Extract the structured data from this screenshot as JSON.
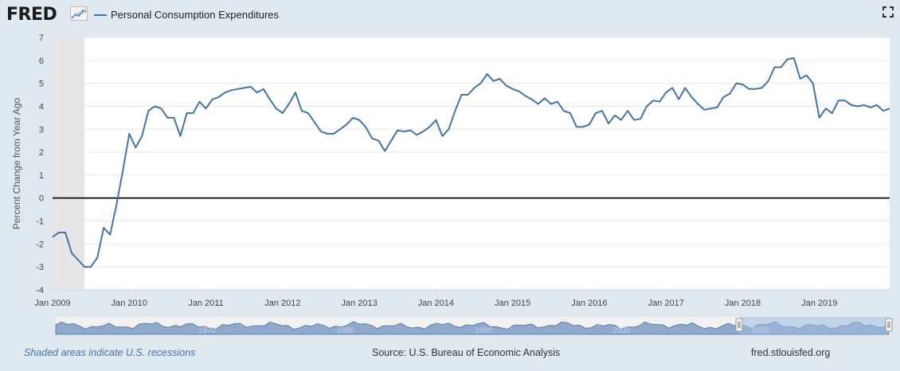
{
  "header": {
    "logo_text": "FRED",
    "legend_label": "Personal Consumption Expenditures"
  },
  "footer": {
    "recession_note": "Shaded areas indicate U.S. recessions",
    "source": "Source: U.S. Bureau of Economic Analysis",
    "site": "fred.stlouisfed.org"
  },
  "colors": {
    "series_line": "#4572a7",
    "recession_band": "#e6e6e6",
    "plot_background": "#ffffff",
    "page_background": "#e1e9f0",
    "navigator_fill": "#6d8fbf"
  },
  "icons": {
    "logo_graph": "small-line-graph-icon",
    "fullscreen": "expand-icon"
  },
  "chart_data": {
    "type": "line",
    "title": "",
    "ylabel": "Percent Change from Year Ago",
    "xlabel": "",
    "ylim": [
      -4,
      7
    ],
    "yticks": [
      "-4",
      "-3",
      "-2",
      "-1",
      "0",
      "1",
      "2",
      "3",
      "4",
      "5",
      "6",
      "7"
    ],
    "xticks": [
      "Jan 2009",
      "Jan 2010",
      "Jan 2011",
      "Jan 2012",
      "Jan 2013",
      "Jan 2014",
      "Jan 2015",
      "Jan 2016",
      "Jan 2017",
      "Jan 2018",
      "Jan 2019"
    ],
    "grid": true,
    "recessions": [
      {
        "start": "2009-01",
        "end": "2009-06"
      }
    ],
    "series": [
      {
        "name": "Personal Consumption Expenditures",
        "start": "2009-01",
        "frequency": "monthly",
        "values": [
          -1.7,
          -1.5,
          -1.5,
          -2.4,
          -2.7,
          -3.0,
          -3.0,
          -2.6,
          -1.3,
          -1.6,
          -0.3,
          1.2,
          2.8,
          2.2,
          2.7,
          3.8,
          4.0,
          3.9,
          3.5,
          3.5,
          2.7,
          3.7,
          3.7,
          4.2,
          3.9,
          4.3,
          4.4,
          4.6,
          4.7,
          4.75,
          4.8,
          4.85,
          4.6,
          4.75,
          4.3,
          3.9,
          3.7,
          4.1,
          4.6,
          3.8,
          3.7,
          3.3,
          2.9,
          2.8,
          2.8,
          3.0,
          3.2,
          3.5,
          3.4,
          3.1,
          2.6,
          2.5,
          2.05,
          2.5,
          2.95,
          2.9,
          2.95,
          2.75,
          2.9,
          3.1,
          3.4,
          2.7,
          3.0,
          3.8,
          4.5,
          4.5,
          4.8,
          5.0,
          5.4,
          5.1,
          5.2,
          4.9,
          4.75,
          4.65,
          4.45,
          4.3,
          4.1,
          4.35,
          4.1,
          4.2,
          3.8,
          3.7,
          3.1,
          3.1,
          3.2,
          3.7,
          3.8,
          3.25,
          3.6,
          3.4,
          3.8,
          3.4,
          3.45,
          4.0,
          4.25,
          4.2,
          4.6,
          4.8,
          4.3,
          4.8,
          4.4,
          4.1,
          3.85,
          3.9,
          3.95,
          4.4,
          4.55,
          5.0,
          4.95,
          4.75,
          4.75,
          4.8,
          5.1,
          5.7,
          5.7,
          6.05,
          6.1,
          5.2,
          5.35,
          5.0,
          3.5,
          3.9,
          3.7,
          4.25,
          4.25,
          4.05,
          4.0,
          4.05,
          3.95,
          4.05,
          3.8,
          3.9
        ]
      }
    ],
    "navigator": {
      "xticks": [
        "1970",
        "1980",
        "1990",
        "2000",
        "2010"
      ],
      "selected_range": [
        "2009-01",
        "2019-12"
      ]
    }
  }
}
